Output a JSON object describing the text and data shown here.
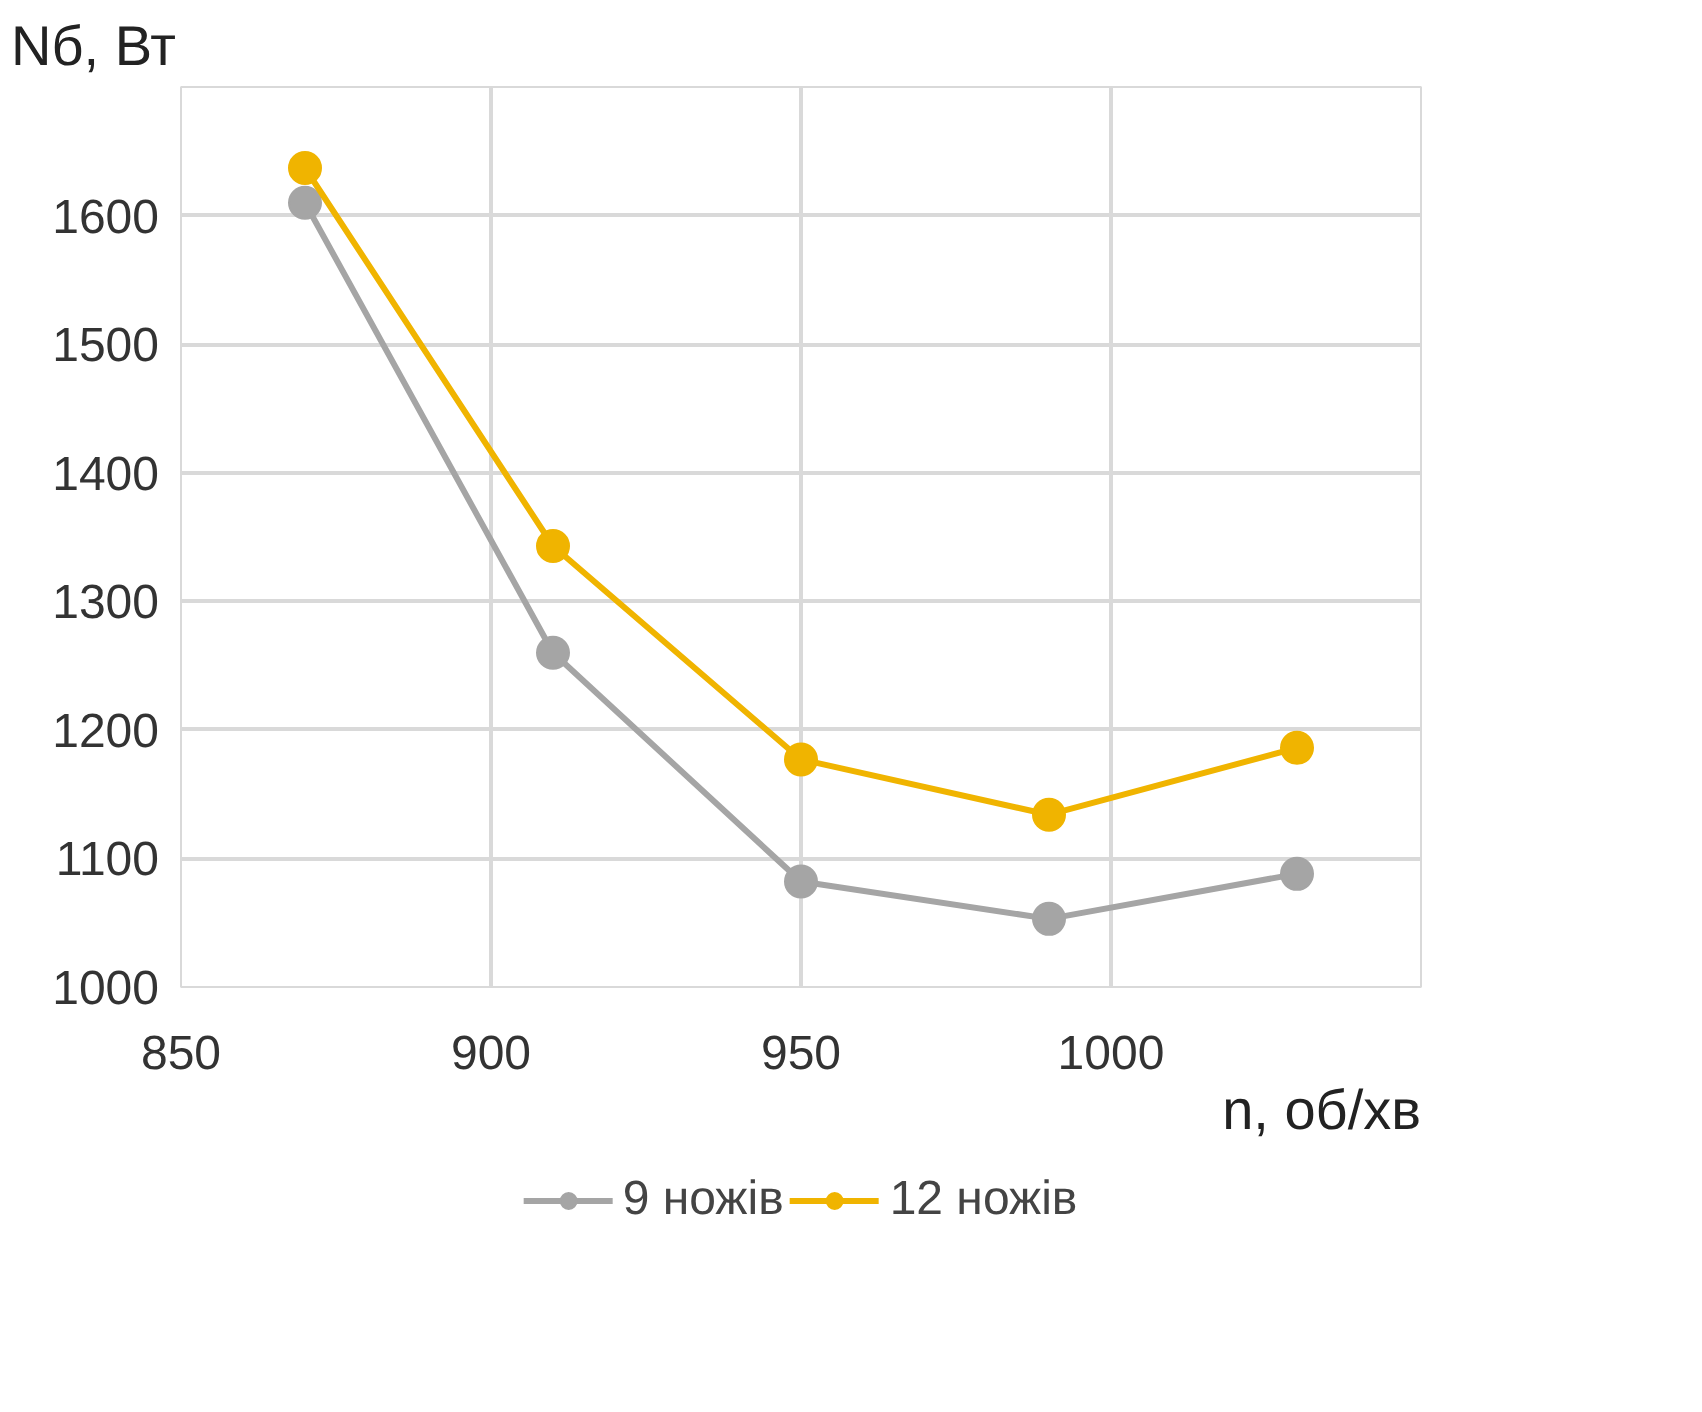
{
  "chart_data": {
    "type": "line",
    "x": [
      870,
      910,
      950,
      990,
      1030
    ],
    "xlabel": "n, об/хв",
    "ylabel": "Nб, Вт",
    "xlim": [
      850,
      1050
    ],
    "xticks": [
      850,
      900,
      950,
      1000
    ],
    "ylim": [
      1000,
      1700
    ],
    "yticks": [
      1000,
      1100,
      1200,
      1300,
      1400,
      1500,
      1600,
      {
        "value": 1700,
        "label": null
      }
    ],
    "grid": true,
    "legend": "bottom",
    "marker": "circle",
    "line_style": "solid",
    "series": [
      {
        "name": "9 ножів",
        "color": "#a5a5a5",
        "values": [
          1610,
          1260,
          1082,
          1053,
          1088
        ]
      },
      {
        "name": "12 ножів",
        "color": "#f0b400",
        "values": [
          1637,
          1343,
          1177,
          1134,
          1186
        ]
      }
    ]
  }
}
